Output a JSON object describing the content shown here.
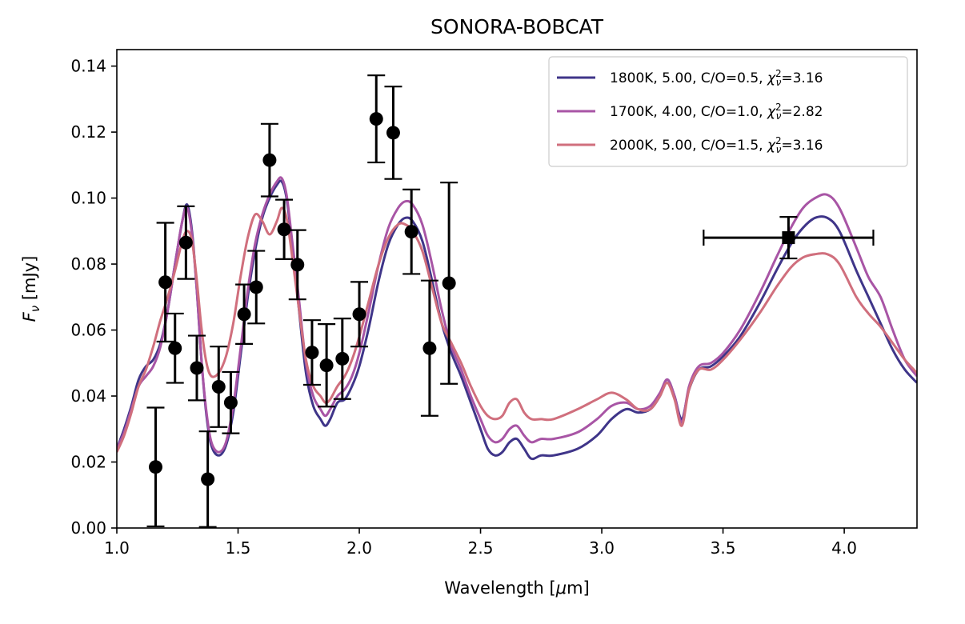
{
  "chart_data": {
    "type": "line",
    "title": "SONORA-BOBCAT",
    "xlabel": "Wavelength [μm]",
    "ylabel": "F_ν [mJy]",
    "xlim": [
      1.0,
      4.3
    ],
    "ylim": [
      0.0,
      0.145
    ],
    "x_ticks": [
      "1.0",
      "1.5",
      "2.0",
      "2.5",
      "3.0",
      "3.5",
      "4.0"
    ],
    "y_ticks": [
      "0.00",
      "0.02",
      "0.04",
      "0.06",
      "0.08",
      "0.10",
      "0.12",
      "0.14"
    ],
    "grid": false,
    "legend_position": "top-right",
    "series": [
      {
        "name": "1800K, 5.00, C/O=0.5, χ²ᵥ=3.16",
        "color": "#3f3589",
        "points": [
          [
            1.0,
            0.024
          ],
          [
            1.03,
            0.03
          ],
          [
            1.06,
            0.037
          ],
          [
            1.09,
            0.045
          ],
          [
            1.12,
            0.049
          ],
          [
            1.15,
            0.051
          ],
          [
            1.18,
            0.056
          ],
          [
            1.21,
            0.066
          ],
          [
            1.24,
            0.08
          ],
          [
            1.27,
            0.093
          ],
          [
            1.29,
            0.098
          ],
          [
            1.31,
            0.09
          ],
          [
            1.33,
            0.072
          ],
          [
            1.35,
            0.05
          ],
          [
            1.37,
            0.034
          ],
          [
            1.39,
            0.025
          ],
          [
            1.42,
            0.022
          ],
          [
            1.45,
            0.025
          ],
          [
            1.48,
            0.035
          ],
          [
            1.51,
            0.052
          ],
          [
            1.54,
            0.07
          ],
          [
            1.57,
            0.084
          ],
          [
            1.6,
            0.094
          ],
          [
            1.63,
            0.1
          ],
          [
            1.66,
            0.104
          ],
          [
            1.68,
            0.105
          ],
          [
            1.7,
            0.1
          ],
          [
            1.72,
            0.088
          ],
          [
            1.75,
            0.067
          ],
          [
            1.78,
            0.047
          ],
          [
            1.81,
            0.037
          ],
          [
            1.84,
            0.033
          ],
          [
            1.86,
            0.031
          ],
          [
            1.88,
            0.033
          ],
          [
            1.91,
            0.038
          ],
          [
            1.94,
            0.039
          ],
          [
            1.97,
            0.043
          ],
          [
            2.0,
            0.049
          ],
          [
            2.04,
            0.061
          ],
          [
            2.08,
            0.075
          ],
          [
            2.12,
            0.086
          ],
          [
            2.16,
            0.092
          ],
          [
            2.19,
            0.094
          ],
          [
            2.22,
            0.093
          ],
          [
            2.26,
            0.087
          ],
          [
            2.3,
            0.075
          ],
          [
            2.34,
            0.062
          ],
          [
            2.38,
            0.053
          ],
          [
            2.42,
            0.046
          ],
          [
            2.46,
            0.038
          ],
          [
            2.5,
            0.03
          ],
          [
            2.53,
            0.024
          ],
          [
            2.56,
            0.022
          ],
          [
            2.59,
            0.023
          ],
          [
            2.62,
            0.026
          ],
          [
            2.65,
            0.027
          ],
          [
            2.68,
            0.024
          ],
          [
            2.71,
            0.021
          ],
          [
            2.75,
            0.022
          ],
          [
            2.8,
            0.022
          ],
          [
            2.9,
            0.024
          ],
          [
            2.98,
            0.028
          ],
          [
            3.04,
            0.033
          ],
          [
            3.1,
            0.036
          ],
          [
            3.15,
            0.035
          ],
          [
            3.2,
            0.036
          ],
          [
            3.24,
            0.04
          ],
          [
            3.27,
            0.045
          ],
          [
            3.3,
            0.04
          ],
          [
            3.33,
            0.033
          ],
          [
            3.36,
            0.042
          ],
          [
            3.4,
            0.048
          ],
          [
            3.45,
            0.049
          ],
          [
            3.5,
            0.052
          ],
          [
            3.57,
            0.058
          ],
          [
            3.65,
            0.068
          ],
          [
            3.72,
            0.078
          ],
          [
            3.78,
            0.086
          ],
          [
            3.83,
            0.091
          ],
          [
            3.88,
            0.094
          ],
          [
            3.93,
            0.094
          ],
          [
            3.98,
            0.09
          ],
          [
            4.05,
            0.078
          ],
          [
            4.1,
            0.07
          ],
          [
            4.15,
            0.062
          ],
          [
            4.2,
            0.054
          ],
          [
            4.25,
            0.048
          ],
          [
            4.3,
            0.044
          ]
        ]
      },
      {
        "name": "1700K, 4.00, C/O=1.0, χ²ᵥ=2.82",
        "color": "#a855a5",
        "points": [
          [
            1.0,
            0.024
          ],
          [
            1.03,
            0.029
          ],
          [
            1.06,
            0.036
          ],
          [
            1.09,
            0.043
          ],
          [
            1.12,
            0.046
          ],
          [
            1.15,
            0.049
          ],
          [
            1.18,
            0.055
          ],
          [
            1.21,
            0.066
          ],
          [
            1.24,
            0.08
          ],
          [
            1.27,
            0.093
          ],
          [
            1.29,
            0.097
          ],
          [
            1.31,
            0.089
          ],
          [
            1.33,
            0.072
          ],
          [
            1.35,
            0.05
          ],
          [
            1.37,
            0.035
          ],
          [
            1.39,
            0.026
          ],
          [
            1.42,
            0.023
          ],
          [
            1.45,
            0.026
          ],
          [
            1.48,
            0.037
          ],
          [
            1.51,
            0.054
          ],
          [
            1.54,
            0.072
          ],
          [
            1.57,
            0.086
          ],
          [
            1.6,
            0.095
          ],
          [
            1.63,
            0.101
          ],
          [
            1.66,
            0.105
          ],
          [
            1.68,
            0.106
          ],
          [
            1.7,
            0.101
          ],
          [
            1.72,
            0.089
          ],
          [
            1.75,
            0.07
          ],
          [
            1.78,
            0.05
          ],
          [
            1.81,
            0.04
          ],
          [
            1.84,
            0.036
          ],
          [
            1.86,
            0.034
          ],
          [
            1.88,
            0.036
          ],
          [
            1.91,
            0.04
          ],
          [
            1.94,
            0.042
          ],
          [
            1.97,
            0.046
          ],
          [
            2.0,
            0.053
          ],
          [
            2.04,
            0.066
          ],
          [
            2.08,
            0.08
          ],
          [
            2.12,
            0.091
          ],
          [
            2.16,
            0.097
          ],
          [
            2.19,
            0.099
          ],
          [
            2.22,
            0.098
          ],
          [
            2.26,
            0.092
          ],
          [
            2.3,
            0.08
          ],
          [
            2.34,
            0.066
          ],
          [
            2.38,
            0.055
          ],
          [
            2.42,
            0.048
          ],
          [
            2.46,
            0.04
          ],
          [
            2.5,
            0.033
          ],
          [
            2.53,
            0.028
          ],
          [
            2.56,
            0.026
          ],
          [
            2.59,
            0.027
          ],
          [
            2.62,
            0.03
          ],
          [
            2.65,
            0.031
          ],
          [
            2.68,
            0.028
          ],
          [
            2.71,
            0.026
          ],
          [
            2.75,
            0.027
          ],
          [
            2.8,
            0.027
          ],
          [
            2.9,
            0.029
          ],
          [
            2.98,
            0.033
          ],
          [
            3.04,
            0.037
          ],
          [
            3.1,
            0.038
          ],
          [
            3.15,
            0.036
          ],
          [
            3.2,
            0.037
          ],
          [
            3.24,
            0.041
          ],
          [
            3.27,
            0.045
          ],
          [
            3.3,
            0.04
          ],
          [
            3.33,
            0.032
          ],
          [
            3.36,
            0.043
          ],
          [
            3.4,
            0.049
          ],
          [
            3.45,
            0.05
          ],
          [
            3.5,
            0.053
          ],
          [
            3.57,
            0.06
          ],
          [
            3.65,
            0.071
          ],
          [
            3.72,
            0.082
          ],
          [
            3.78,
            0.091
          ],
          [
            3.83,
            0.097
          ],
          [
            3.88,
            0.1
          ],
          [
            3.93,
            0.101
          ],
          [
            3.98,
            0.097
          ],
          [
            4.05,
            0.085
          ],
          [
            4.1,
            0.076
          ],
          [
            4.15,
            0.07
          ],
          [
            4.2,
            0.06
          ],
          [
            4.25,
            0.051
          ],
          [
            4.3,
            0.046
          ]
        ]
      },
      {
        "name": "2000K, 5.00, C/O=1.5, χ²ᵥ=3.16",
        "color": "#d06f7d",
        "points": [
          [
            1.0,
            0.023
          ],
          [
            1.03,
            0.028
          ],
          [
            1.06,
            0.035
          ],
          [
            1.09,
            0.043
          ],
          [
            1.12,
            0.048
          ],
          [
            1.15,
            0.055
          ],
          [
            1.18,
            0.063
          ],
          [
            1.21,
            0.07
          ],
          [
            1.24,
            0.078
          ],
          [
            1.27,
            0.087
          ],
          [
            1.29,
            0.09
          ],
          [
            1.31,
            0.087
          ],
          [
            1.33,
            0.075
          ],
          [
            1.35,
            0.06
          ],
          [
            1.37,
            0.05
          ],
          [
            1.39,
            0.046
          ],
          [
            1.42,
            0.047
          ],
          [
            1.45,
            0.052
          ],
          [
            1.48,
            0.062
          ],
          [
            1.51,
            0.076
          ],
          [
            1.54,
            0.088
          ],
          [
            1.57,
            0.095
          ],
          [
            1.6,
            0.093
          ],
          [
            1.63,
            0.089
          ],
          [
            1.66,
            0.093
          ],
          [
            1.68,
            0.097
          ],
          [
            1.7,
            0.094
          ],
          [
            1.72,
            0.084
          ],
          [
            1.75,
            0.067
          ],
          [
            1.78,
            0.051
          ],
          [
            1.81,
            0.043
          ],
          [
            1.84,
            0.04
          ],
          [
            1.86,
            0.038
          ],
          [
            1.88,
            0.039
          ],
          [
            1.91,
            0.043
          ],
          [
            1.94,
            0.046
          ],
          [
            1.97,
            0.051
          ],
          [
            2.0,
            0.058
          ],
          [
            2.04,
            0.069
          ],
          [
            2.08,
            0.08
          ],
          [
            2.12,
            0.088
          ],
          [
            2.16,
            0.092
          ],
          [
            2.19,
            0.092
          ],
          [
            2.22,
            0.09
          ],
          [
            2.26,
            0.084
          ],
          [
            2.3,
            0.073
          ],
          [
            2.34,
            0.062
          ],
          [
            2.38,
            0.056
          ],
          [
            2.42,
            0.05
          ],
          [
            2.46,
            0.043
          ],
          [
            2.5,
            0.037
          ],
          [
            2.53,
            0.034
          ],
          [
            2.56,
            0.033
          ],
          [
            2.59,
            0.034
          ],
          [
            2.62,
            0.038
          ],
          [
            2.65,
            0.039
          ],
          [
            2.68,
            0.035
          ],
          [
            2.71,
            0.033
          ],
          [
            2.75,
            0.033
          ],
          [
            2.8,
            0.033
          ],
          [
            2.9,
            0.036
          ],
          [
            2.98,
            0.039
          ],
          [
            3.04,
            0.041
          ],
          [
            3.1,
            0.039
          ],
          [
            3.15,
            0.036
          ],
          [
            3.2,
            0.036
          ],
          [
            3.24,
            0.04
          ],
          [
            3.27,
            0.044
          ],
          [
            3.3,
            0.039
          ],
          [
            3.33,
            0.031
          ],
          [
            3.36,
            0.042
          ],
          [
            3.4,
            0.048
          ],
          [
            3.45,
            0.048
          ],
          [
            3.5,
            0.051
          ],
          [
            3.57,
            0.057
          ],
          [
            3.65,
            0.065
          ],
          [
            3.72,
            0.073
          ],
          [
            3.78,
            0.079
          ],
          [
            3.83,
            0.082
          ],
          [
            3.88,
            0.083
          ],
          [
            3.93,
            0.083
          ],
          [
            3.98,
            0.08
          ],
          [
            4.05,
            0.07
          ],
          [
            4.1,
            0.065
          ],
          [
            4.15,
            0.061
          ],
          [
            4.2,
            0.056
          ],
          [
            4.25,
            0.051
          ],
          [
            4.3,
            0.047
          ]
        ]
      }
    ],
    "observations": [
      {
        "x": 1.16,
        "y": 0.0185,
        "yerr": 0.018,
        "marker": "circle"
      },
      {
        "x": 1.2,
        "y": 0.0745,
        "yerr": 0.018,
        "marker": "circle"
      },
      {
        "x": 1.24,
        "y": 0.0545,
        "yerr": 0.0105,
        "marker": "circle"
      },
      {
        "x": 1.285,
        "y": 0.0865,
        "yerr": 0.011,
        "marker": "circle"
      },
      {
        "x": 1.33,
        "y": 0.0485,
        "yerr": 0.0098,
        "marker": "circle"
      },
      {
        "x": 1.375,
        "y": 0.0148,
        "yerr": 0.0145,
        "marker": "circle"
      },
      {
        "x": 1.42,
        "y": 0.0428,
        "yerr": 0.0122,
        "marker": "circle"
      },
      {
        "x": 1.47,
        "y": 0.038,
        "yerr": 0.0093,
        "marker": "circle"
      },
      {
        "x": 1.525,
        "y": 0.0648,
        "yerr": 0.009,
        "marker": "circle"
      },
      {
        "x": 1.575,
        "y": 0.073,
        "yerr": 0.011,
        "marker": "circle"
      },
      {
        "x": 1.63,
        "y": 0.1115,
        "yerr": 0.011,
        "marker": "circle"
      },
      {
        "x": 1.69,
        "y": 0.0905,
        "yerr": 0.009,
        "marker": "circle"
      },
      {
        "x": 1.745,
        "y": 0.0798,
        "yerr": 0.0105,
        "marker": "circle"
      },
      {
        "x": 1.805,
        "y": 0.0532,
        "yerr": 0.0098,
        "marker": "circle"
      },
      {
        "x": 1.865,
        "y": 0.0493,
        "yerr": 0.0125,
        "marker": "circle"
      },
      {
        "x": 1.93,
        "y": 0.0513,
        "yerr": 0.0122,
        "marker": "circle"
      },
      {
        "x": 2.0,
        "y": 0.0648,
        "yerr": 0.0098,
        "marker": "circle"
      },
      {
        "x": 2.07,
        "y": 0.124,
        "yerr": 0.0132,
        "marker": "circle"
      },
      {
        "x": 2.14,
        "y": 0.1198,
        "yerr": 0.014,
        "marker": "circle"
      },
      {
        "x": 2.215,
        "y": 0.0898,
        "yerr": 0.0128,
        "marker": "circle"
      },
      {
        "x": 2.29,
        "y": 0.0545,
        "yerr": 0.0205,
        "marker": "circle"
      },
      {
        "x": 2.37,
        "y": 0.0742,
        "yerr": 0.0305,
        "marker": "circle"
      },
      {
        "x": 3.77,
        "y": 0.088,
        "yerr": 0.0063,
        "xerr": 0.35,
        "marker": "square"
      }
    ]
  }
}
